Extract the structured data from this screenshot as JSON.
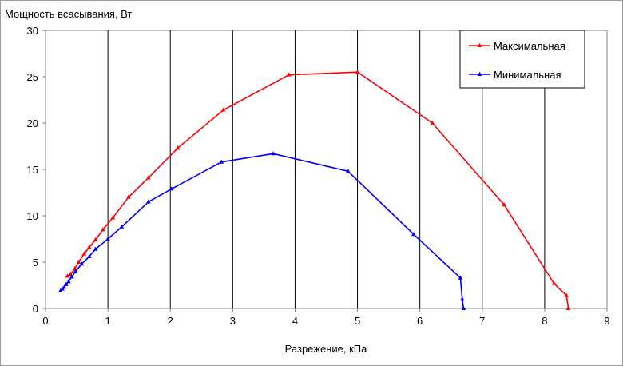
{
  "chart_data": {
    "type": "line",
    "title": "",
    "ylabel": "Мощность всасывания, Вт",
    "xlabel": "Разрежение, кПа",
    "xlim": [
      0,
      9
    ],
    "ylim": [
      0,
      30
    ],
    "xticks": [
      "0",
      "1",
      "2",
      "3",
      "4",
      "5",
      "6",
      "7",
      "8",
      "9"
    ],
    "yticks": [
      "0",
      "5",
      "10",
      "15",
      "20",
      "25",
      "30"
    ],
    "grid": "vertical",
    "legend_position": "top-right",
    "series": [
      {
        "name": "Максимальная",
        "color": "#ff0000",
        "marker": "triangle",
        "x": [
          0.35,
          0.4,
          0.47,
          0.53,
          0.62,
          0.7,
          0.8,
          0.92,
          1.08,
          1.33,
          1.65,
          2.12,
          2.85,
          3.9,
          5.0,
          6.2,
          7.35,
          8.15,
          8.35,
          8.38
        ],
        "y": [
          3.5,
          3.7,
          4.3,
          5.0,
          5.9,
          6.6,
          7.4,
          8.5,
          9.8,
          12.0,
          14.1,
          17.3,
          21.4,
          25.2,
          25.5,
          20.0,
          11.2,
          2.7,
          1.4,
          0
        ]
      },
      {
        "name": "Минимальная",
        "color": "#0000ff",
        "marker": "triangle",
        "x": [
          0.24,
          0.27,
          0.3,
          0.33,
          0.37,
          0.42,
          0.48,
          0.58,
          0.7,
          0.8,
          1.0,
          1.22,
          1.65,
          2.02,
          2.82,
          3.65,
          4.85,
          5.9,
          6.65,
          6.68,
          6.7
        ],
        "y": [
          1.9,
          2.1,
          2.3,
          2.6,
          2.9,
          3.4,
          4.0,
          4.8,
          5.6,
          6.4,
          7.5,
          8.8,
          11.5,
          12.9,
          15.8,
          16.7,
          14.8,
          8.0,
          3.3,
          1.0,
          0
        ]
      }
    ]
  }
}
